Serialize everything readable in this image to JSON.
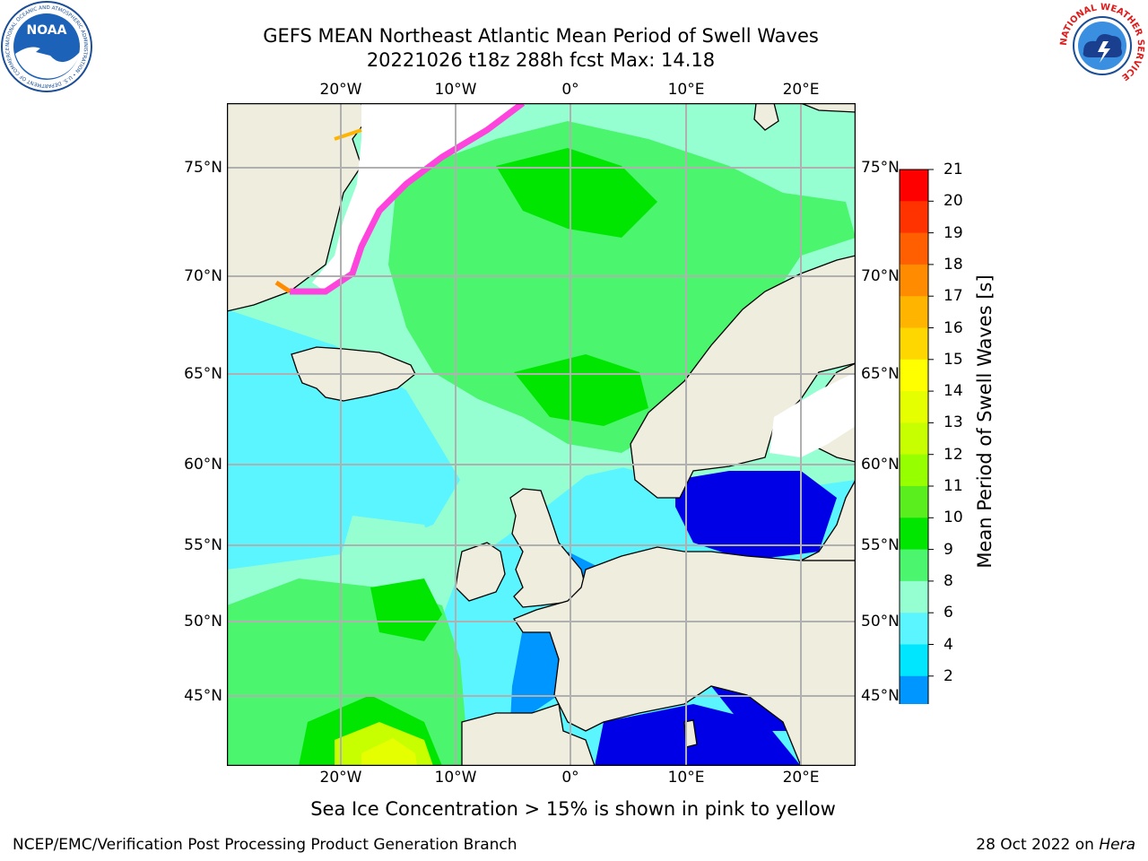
{
  "title_line1": "GEFS MEAN Northeast Atlantic Mean Period of Swell Waves",
  "title_line2": "20221026 t18z 288h fcst   Max: 14.18",
  "lon_labels": [
    "20°W",
    "10°W",
    "0°",
    "10°E",
    "20°E"
  ],
  "lat_labels": [
    "75°N",
    "70°N",
    "65°N",
    "60°N",
    "55°N",
    "50°N",
    "45°N"
  ],
  "colorbar": {
    "label": "Mean Period of Swell Waves [s]",
    "ticks": [
      "21",
      "20",
      "19",
      "18",
      "17",
      "16",
      "15",
      "14",
      "13",
      "12",
      "11",
      "10",
      "9",
      "8",
      "6",
      "4",
      "2"
    ],
    "colors": [
      "#ff0000",
      "#ff3300",
      "#ff5f00",
      "#ff8c00",
      "#ffb400",
      "#ffd700",
      "#ffff00",
      "#e6ff00",
      "#c8ff00",
      "#96ff00",
      "#5aee1e",
      "#00e600",
      "#4bf56e",
      "#96ffd2",
      "#5af5ff",
      "#00e6ff",
      "#0096ff",
      "#0032ff",
      "#0000e6"
    ]
  },
  "subtitle": "Sea Ice Concentration > 15% is shown in pink to yellow",
  "footer_left": "NCEP/EMC/Verification Post Processing Product Generation Branch",
  "footer_date": "28 Oct 2022 on",
  "footer_machine": "Hera",
  "logos": {
    "left": "NOAA",
    "left_ring": "NATIONAL OCEANIC AND ATMOSPHERIC ADMINISTRATION • U.S. DEPARTMENT OF COMMERCE",
    "right_ring": "NATIONAL WEATHER SERVICE"
  },
  "map_colors": {
    "land": "#efedde",
    "grid": "#b0b0b0",
    "coast": "#000000"
  }
}
